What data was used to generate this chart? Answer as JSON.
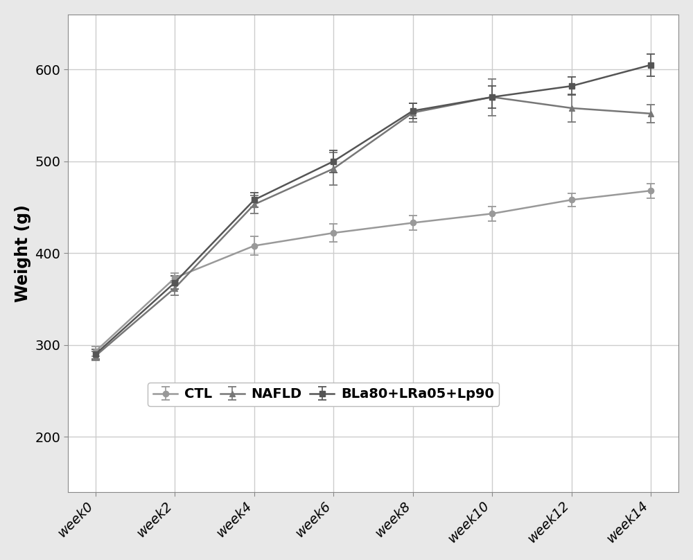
{
  "weeks": [
    0,
    2,
    4,
    6,
    8,
    10,
    12,
    14
  ],
  "week_labels": [
    "week0",
    "week2",
    "week4",
    "week6",
    "week8",
    "week10",
    "week12",
    "week14"
  ],
  "series": {
    "CTL": {
      "y": [
        293,
        373,
        408,
        422,
        433,
        443,
        458,
        468
      ],
      "yerr": [
        5,
        5,
        10,
        10,
        8,
        8,
        7,
        8
      ],
      "color": "#999999",
      "marker": "o",
      "linestyle": "-"
    },
    "NAFLD": {
      "y": [
        288,
        362,
        453,
        492,
        553,
        570,
        558,
        552
      ],
      "yerr": [
        5,
        8,
        10,
        18,
        10,
        20,
        15,
        10
      ],
      "color": "#777777",
      "marker": "^",
      "linestyle": "-"
    },
    "BLa80+LRa05+Lp90": {
      "y": [
        290,
        368,
        458,
        500,
        555,
        570,
        582,
        605
      ],
      "yerr": [
        5,
        7,
        8,
        12,
        8,
        12,
        10,
        12
      ],
      "color": "#555555",
      "marker": "s",
      "linestyle": "-"
    }
  },
  "ylabel": "Weight (g)",
  "ylim": [
    140,
    660
  ],
  "yticks": [
    200,
    300,
    400,
    500,
    600
  ],
  "plot_bg_color": "#ffffff",
  "figure_bg_color": "#e8e8e8",
  "grid_color": "#cccccc",
  "legend_fontsize": 14,
  "axis_label_fontsize": 17,
  "tick_fontsize": 14,
  "line_width": 1.8,
  "marker_size": 6,
  "capsize": 4
}
